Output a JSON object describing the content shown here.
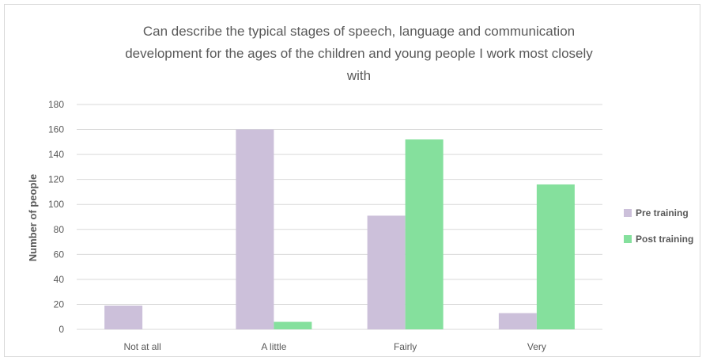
{
  "chart_data": {
    "type": "bar",
    "title": [
      "Can describe the typical stages of speech, language and communication",
      "development for the ages of the children and young people I work most closely",
      "with"
    ],
    "xlabel": "",
    "ylabel": "Number of people",
    "categories": [
      "Not at all",
      "A little",
      "Fairly",
      "Very"
    ],
    "series": [
      {
        "name": "Pre training",
        "values": [
          19,
          160,
          91,
          13
        ],
        "color": "#ccc0da"
      },
      {
        "name": "Post training",
        "values": [
          0,
          6,
          152,
          116
        ],
        "color": "#85e09d"
      }
    ],
    "ylim": [
      0,
      180
    ],
    "yticks": [
      0,
      20,
      40,
      60,
      80,
      100,
      120,
      140,
      160,
      180
    ],
    "grid": true,
    "legend_position": "right"
  }
}
